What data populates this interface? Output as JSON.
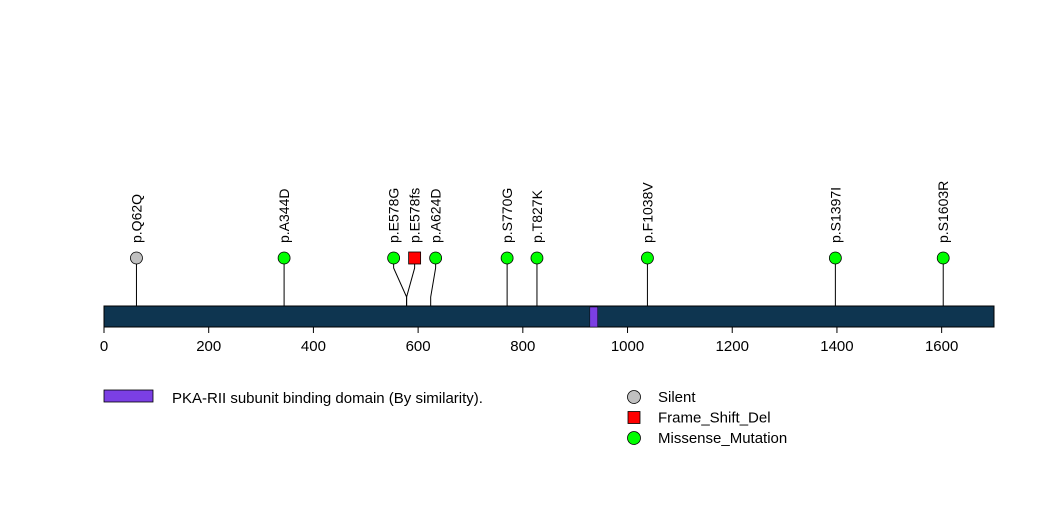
{
  "chart_data": {
    "type": "lollipop",
    "xlim": [
      0,
      1700
    ],
    "protein_length": 1700,
    "x_ticks": [
      "0",
      "200",
      "400",
      "600",
      "800",
      "1000",
      "1200",
      "1400",
      "1600"
    ],
    "x_tick_values": [
      0,
      200,
      400,
      600,
      800,
      1000,
      1200,
      1400,
      1600
    ],
    "domains": [
      {
        "name": "PKA-RII subunit binding domain (By similarity).",
        "start": 928,
        "end": 943,
        "color": "#7b3fe4"
      }
    ],
    "mutations": [
      {
        "label": "p.Q62Q",
        "position": 62,
        "type": "Silent"
      },
      {
        "label": "p.A344D",
        "position": 344,
        "type": "Missense_Mutation"
      },
      {
        "label": "p.E578G",
        "position": 578,
        "type": "Missense_Mutation"
      },
      {
        "label": "p.E578fs",
        "position": 578,
        "type": "Frame_Shift_Del"
      },
      {
        "label": "p.A624D",
        "position": 624,
        "type": "Missense_Mutation"
      },
      {
        "label": "p.S770G",
        "position": 770,
        "type": "Missense_Mutation"
      },
      {
        "label": "p.T827K",
        "position": 827,
        "type": "Missense_Mutation"
      },
      {
        "label": "p.F1038V",
        "position": 1038,
        "type": "Missense_Mutation"
      },
      {
        "label": "p.S1397I",
        "position": 1397,
        "type": "Missense_Mutation"
      },
      {
        "label": "p.S1603R",
        "position": 1603,
        "type": "Missense_Mutation"
      }
    ],
    "legend_placement": "bottom-right",
    "mutation_legend": [
      {
        "label": "Silent",
        "shape": "circle",
        "color": "#c0c0c0"
      },
      {
        "label": "Frame_Shift_Del",
        "shape": "square",
        "color": "#ff0000"
      },
      {
        "label": "Missense_Mutation",
        "shape": "circle",
        "color": "#00ff00"
      }
    ],
    "colors": {
      "protein_bar": "#0e3550",
      "Silent": "#c0c0c0",
      "Frame_Shift_Del": "#ff0000",
      "Missense_Mutation": "#00ff00"
    }
  }
}
